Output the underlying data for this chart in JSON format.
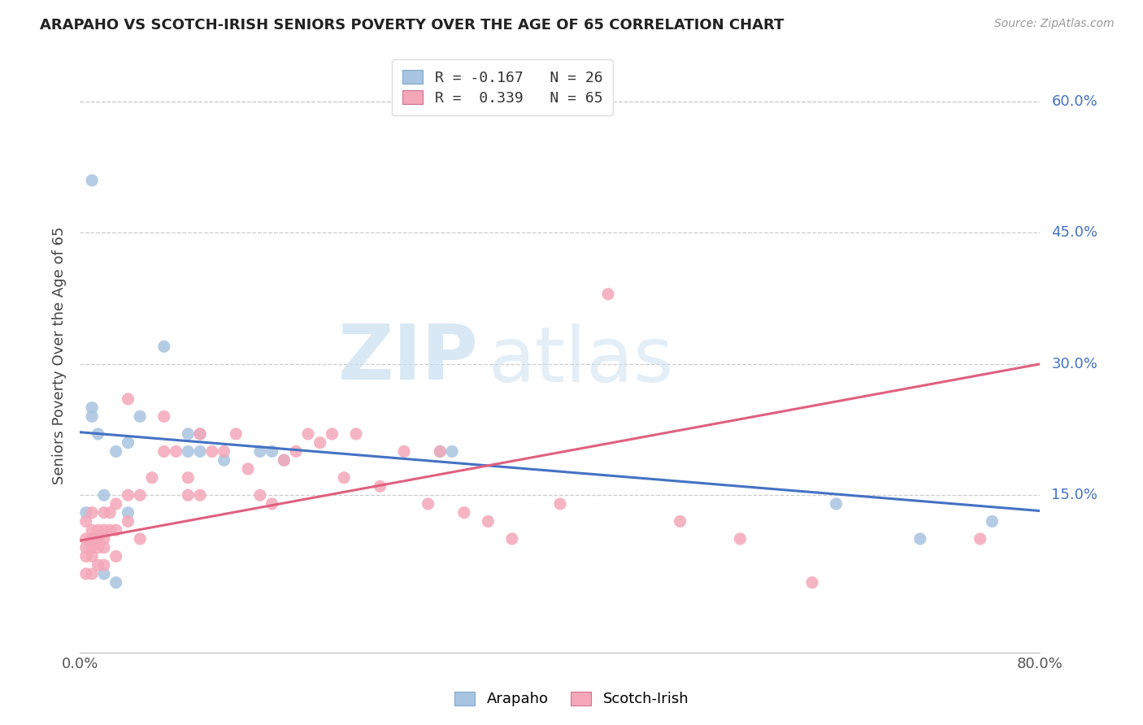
{
  "title": "ARAPAHO VS SCOTCH-IRISH SENIORS POVERTY OVER THE AGE OF 65 CORRELATION CHART",
  "source": "Source: ZipAtlas.com",
  "ylabel": "Seniors Poverty Over the Age of 65",
  "xlim": [
    0.0,
    0.8
  ],
  "ylim": [
    -0.03,
    0.65
  ],
  "ytick_right_labels": [
    "60.0%",
    "45.0%",
    "30.0%",
    "15.0%"
  ],
  "ytick_right_vals": [
    0.6,
    0.45,
    0.3,
    0.15
  ],
  "arapaho_color": "#a8c4e0",
  "scotch_irish_color": "#f4a7b9",
  "arapaho_line_color": "#4472c4",
  "scotch_irish_line_color": "#e06080",
  "legend_label_arapaho": "R = -0.167   N = 26",
  "legend_label_scotch": "R =  0.339   N = 65",
  "legend_bottom_arapaho": "Arapaho",
  "legend_bottom_scotch": "Scotch-Irish",
  "arapaho_intercept": 0.222,
  "arapaho_slope": -0.1125,
  "scotch_intercept": 0.098,
  "scotch_slope": 0.2525,
  "arapaho_x": [
    0.005,
    0.01,
    0.01,
    0.01,
    0.015,
    0.02,
    0.02,
    0.03,
    0.03,
    0.04,
    0.04,
    0.05,
    0.07,
    0.09,
    0.09,
    0.1,
    0.1,
    0.12,
    0.15,
    0.16,
    0.17,
    0.3,
    0.31,
    0.63,
    0.7,
    0.76
  ],
  "arapaho_y": [
    0.13,
    0.24,
    0.25,
    0.51,
    0.22,
    0.06,
    0.15,
    0.05,
    0.2,
    0.13,
    0.21,
    0.24,
    0.32,
    0.2,
    0.22,
    0.2,
    0.22,
    0.19,
    0.2,
    0.2,
    0.19,
    0.2,
    0.2,
    0.14,
    0.1,
    0.12
  ],
  "scotch_x": [
    0.005,
    0.005,
    0.005,
    0.005,
    0.005,
    0.01,
    0.01,
    0.01,
    0.01,
    0.01,
    0.01,
    0.01,
    0.015,
    0.015,
    0.015,
    0.015,
    0.02,
    0.02,
    0.02,
    0.02,
    0.02,
    0.025,
    0.025,
    0.03,
    0.03,
    0.03,
    0.04,
    0.04,
    0.04,
    0.05,
    0.05,
    0.06,
    0.07,
    0.07,
    0.08,
    0.09,
    0.09,
    0.1,
    0.1,
    0.11,
    0.12,
    0.13,
    0.14,
    0.15,
    0.16,
    0.17,
    0.18,
    0.19,
    0.2,
    0.21,
    0.22,
    0.23,
    0.25,
    0.27,
    0.29,
    0.3,
    0.32,
    0.34,
    0.36,
    0.4,
    0.44,
    0.5,
    0.55,
    0.61,
    0.75
  ],
  "scotch_y": [
    0.06,
    0.08,
    0.09,
    0.1,
    0.12,
    0.06,
    0.08,
    0.09,
    0.1,
    0.1,
    0.11,
    0.13,
    0.07,
    0.09,
    0.1,
    0.11,
    0.07,
    0.09,
    0.1,
    0.11,
    0.13,
    0.11,
    0.13,
    0.08,
    0.11,
    0.14,
    0.12,
    0.15,
    0.26,
    0.1,
    0.15,
    0.17,
    0.2,
    0.24,
    0.2,
    0.15,
    0.17,
    0.15,
    0.22,
    0.2,
    0.2,
    0.22,
    0.18,
    0.15,
    0.14,
    0.19,
    0.2,
    0.22,
    0.21,
    0.22,
    0.17,
    0.22,
    0.16,
    0.2,
    0.14,
    0.2,
    0.13,
    0.12,
    0.1,
    0.14,
    0.38,
    0.12,
    0.1,
    0.05,
    0.1
  ],
  "watermark_zip": "ZIP",
  "watermark_atlas": "atlas",
  "background_color": "#ffffff",
  "grid_color": "#cccccc"
}
